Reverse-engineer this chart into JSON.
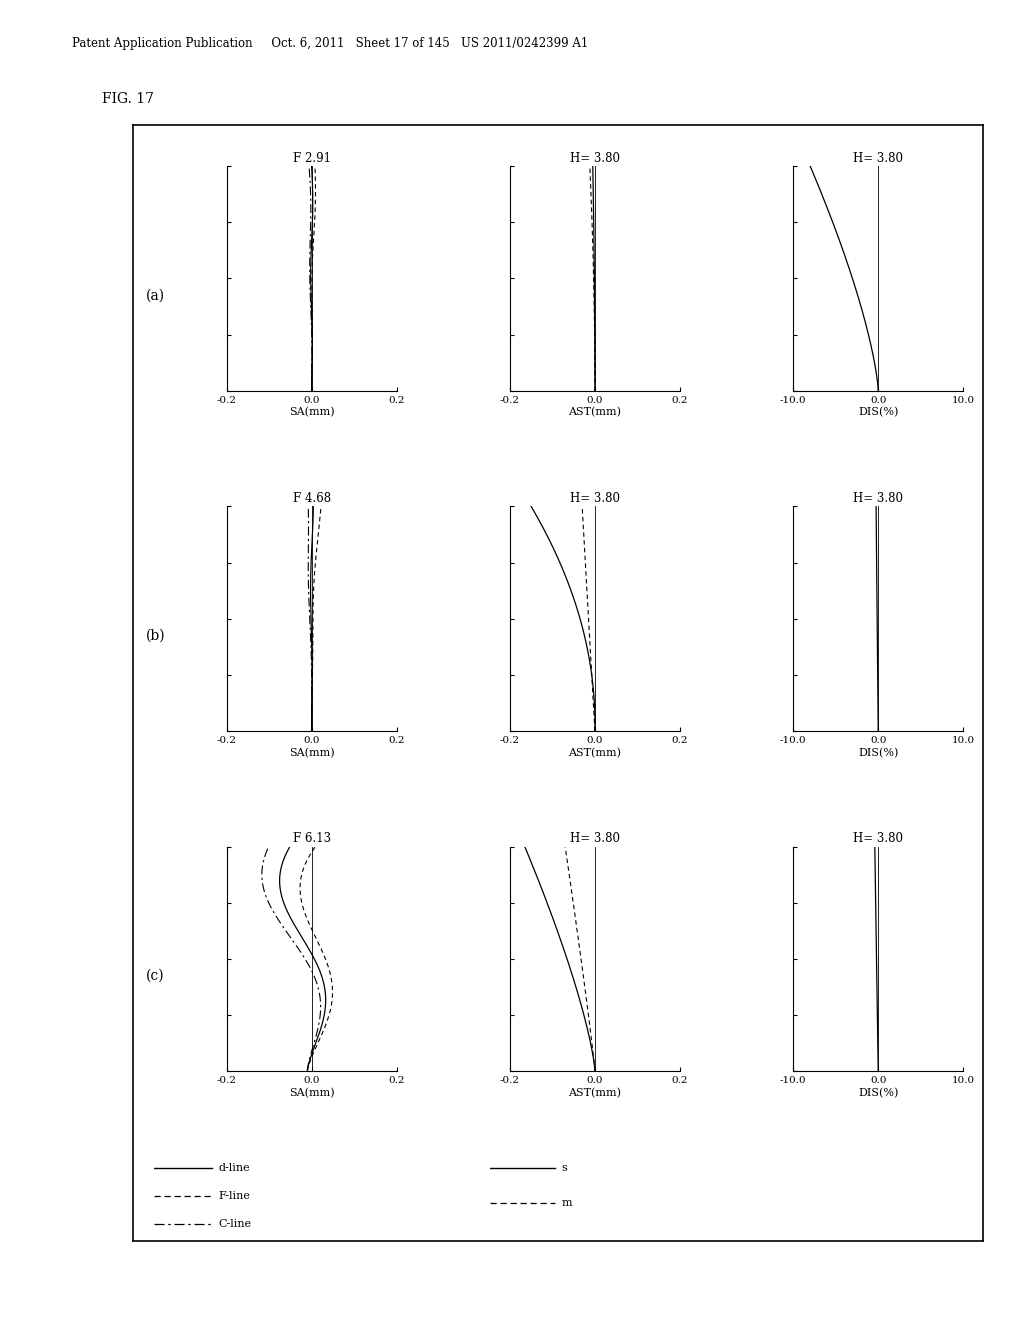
{
  "title_fig": "FIG. 17",
  "header_text": "Patent Application Publication     Oct. 6, 2011   Sheet 17 of 145   US 2011/0242399 A1",
  "rows": [
    {
      "label": "(a)",
      "sa_title": "F 2.91",
      "ast_title": "H= 3.80",
      "dis_title": "H= 3.80"
    },
    {
      "label": "(b)",
      "sa_title": "F 4.68",
      "ast_title": "H= 3.80",
      "dis_title": "H= 3.80"
    },
    {
      "label": "(c)",
      "sa_title": "F 6.13",
      "ast_title": "H= 3.80",
      "dis_title": "H= 3.80"
    }
  ],
  "xlim_sa": [
    -0.2,
    0.2
  ],
  "xlim_ast": [
    -0.2,
    0.2
  ],
  "xlim_dis": [
    -10.0,
    10.0
  ],
  "ylim": [
    0.0,
    1.0
  ],
  "xticks_sa": [
    -0.2,
    0.0,
    0.2
  ],
  "xticks_ast": [
    -0.2,
    0.0,
    0.2
  ],
  "xticks_dis": [
    -10.0,
    0.0,
    10.0
  ],
  "xlabel_sa": "SA(mm)",
  "xlabel_ast": "AST(mm)",
  "xlabel_dis": "DIS(%)",
  "background_color": "#ffffff",
  "line_color": "#000000"
}
